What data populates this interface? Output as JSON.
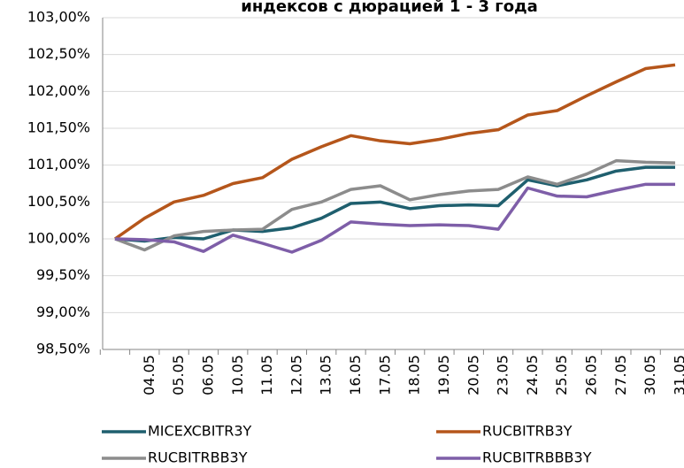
{
  "chart_data": {
    "type": "line",
    "title": "индексов с дюрацией 1 - 3 года",
    "categories": [
      null,
      "04.05",
      "05.05",
      "06.05",
      "10.05",
      "11.05",
      "12.05",
      "13.05",
      "16.05",
      "17.05",
      "18.05",
      "19.05",
      "20.05",
      "23.05",
      "24.05",
      "25.05",
      "26.05",
      "27.05",
      "30.05",
      "31.05"
    ],
    "series": [
      {
        "name": "MICEXCBITR3Y",
        "color": "#1f5f6e",
        "values": [
          100,
          99.97,
          100.02,
          100.0,
          100.12,
          100.1,
          100.15,
          100.28,
          100.48,
          100.5,
          100.41,
          100.45,
          100.46,
          100.45,
          100.8,
          100.72,
          100.8,
          100.92,
          100.97,
          100.97
        ]
      },
      {
        "name": "RUCBITRB3Y",
        "color": "#b5561b",
        "values": [
          100,
          100.28,
          100.5,
          100.59,
          100.75,
          100.83,
          101.08,
          101.25,
          101.4,
          101.33,
          101.29,
          101.35,
          101.43,
          101.48,
          101.68,
          101.74,
          101.94,
          102.13,
          102.31,
          102.36
        ]
      },
      {
        "name": "RUCBITRBB3Y",
        "color": "#8c8c8c",
        "values": [
          100,
          99.85,
          100.04,
          100.1,
          100.12,
          100.13,
          100.4,
          100.5,
          100.67,
          100.72,
          100.53,
          100.6,
          100.65,
          100.67,
          100.84,
          100.74,
          100.88,
          101.06,
          101.04,
          101.03
        ]
      },
      {
        "name": "RUCBITRBBB3Y",
        "color": "#7e5ea8",
        "values": [
          100,
          99.99,
          99.96,
          99.83,
          100.05,
          99.94,
          99.82,
          99.98,
          100.23,
          100.2,
          100.18,
          100.19,
          100.18,
          100.13,
          100.69,
          100.58,
          100.57,
          100.66,
          100.74,
          100.74
        ]
      }
    ],
    "ylim": [
      98.5,
      103
    ],
    "yticks": [
      {
        "value": 98.5,
        "label": "98,50%"
      },
      {
        "value": 99,
        "label": "99,00%"
      },
      {
        "value": 99.5,
        "label": "99,50%"
      },
      {
        "value": 100,
        "label": "100,00%"
      },
      {
        "value": 100.5,
        "label": "100,50%"
      },
      {
        "value": 101,
        "label": "101,00%"
      },
      {
        "value": 101.5,
        "label": "101,50%"
      },
      {
        "value": 102,
        "label": "102,00%"
      },
      {
        "value": 102.5,
        "label": "102,50%"
      },
      {
        "value": 103,
        "label": "103,00%"
      }
    ],
    "grid": true
  }
}
